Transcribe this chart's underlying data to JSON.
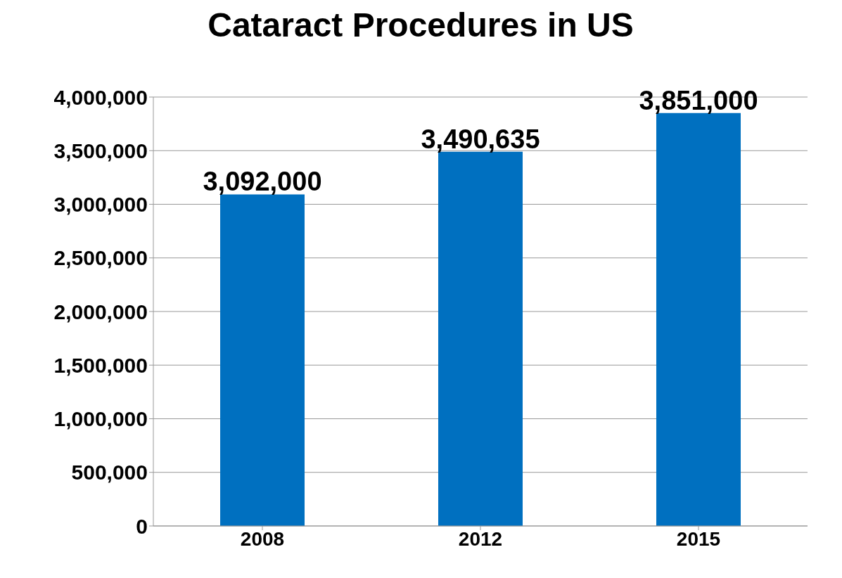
{
  "chart_data": {
    "type": "bar",
    "title": "Cataract Procedures in US",
    "categories": [
      "2008",
      "2012",
      "2015"
    ],
    "values": [
      3092000,
      3490635,
      3851000
    ],
    "value_labels": [
      "3,092,000",
      "3,490,635",
      "3,851,000"
    ],
    "color": "#0070c0",
    "ylim": [
      0,
      4000000
    ],
    "yticks": [
      0,
      {
        "value": 500000,
        "label": "500,000"
      },
      {
        "value": 1000000,
        "label": "1,000,000"
      },
      {
        "value": 1500000,
        "label": "1,500,000"
      },
      {
        "value": 2000000,
        "label": "2,000,000"
      },
      {
        "value": 2500000,
        "label": "2,500,000"
      },
      {
        "value": 3000000,
        "label": "3,000,000"
      },
      {
        "value": 3500000,
        "label": "3,500,000"
      },
      {
        "value": 4000000,
        "label": "4,000,000"
      }
    ],
    "grid": "y"
  }
}
